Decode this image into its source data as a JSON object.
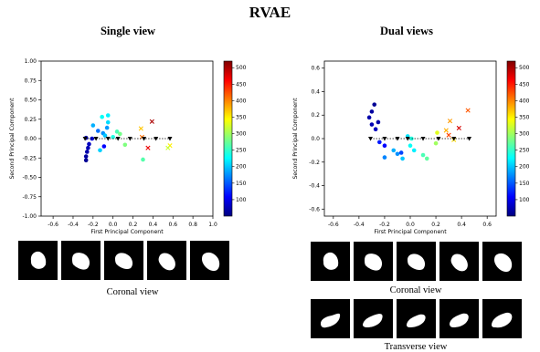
{
  "title": "RVAE",
  "colormap": [
    "#00007f",
    "#0000ff",
    "#007fff",
    "#00ffff",
    "#7fff7f",
    "#ffff00",
    "#ff7f00",
    "#ff0000",
    "#7f0000"
  ],
  "panels": [
    {
      "title": "Single view",
      "view_captions": [
        "Coronal view"
      ],
      "thumbnail_rows": 1,
      "thumbnails_per_row": 5
    },
    {
      "title": "Dual views",
      "view_captions": [
        "Coronal view",
        "Transverse view"
      ],
      "thumbnail_rows": 2,
      "thumbnails_per_row": 5
    }
  ],
  "chart_data": [
    {
      "type": "scatter",
      "title": "Single view",
      "xlabel": "First Principal Component",
      "ylabel": "Second Principal Component",
      "xlim": [
        -0.72,
        1.0
      ],
      "ylim": [
        -1.0,
        1.0
      ],
      "xticks": [
        "-0.6",
        "-0.4",
        "-0.2",
        "0.0",
        "0.2",
        "0.4",
        "0.6",
        "0.8",
        "1.0"
      ],
      "xtick_values": [
        -0.6,
        -0.4,
        -0.2,
        0.0,
        0.2,
        0.4,
        0.6,
        0.8,
        1.0
      ],
      "yticks": [
        "-1.00",
        "-0.75",
        "-0.50",
        "-0.25",
        "0.00",
        "0.25",
        "0.50",
        "0.75",
        "1.00"
      ],
      "ytick_values": [
        -1.0,
        -0.75,
        -0.5,
        -0.25,
        0.0,
        0.25,
        0.5,
        0.75,
        1.0
      ],
      "colorbar": {
        "range": [
          50,
          520
        ],
        "ticks": [
          100,
          150,
          200,
          250,
          300,
          350,
          400,
          450,
          500
        ]
      },
      "points": [
        {
          "x": -0.27,
          "y": -0.28,
          "c": 60
        },
        {
          "x": -0.27,
          "y": -0.23,
          "c": 65
        },
        {
          "x": -0.26,
          "y": -0.17,
          "c": 70
        },
        {
          "x": -0.25,
          "y": -0.12,
          "c": 75
        },
        {
          "x": -0.24,
          "y": -0.07,
          "c": 80
        },
        {
          "x": -0.27,
          "y": 0.01,
          "c": 70
        },
        {
          "x": -0.21,
          "y": 0.0,
          "c": 90
        },
        {
          "x": -0.09,
          "y": -0.1,
          "c": 110
        },
        {
          "x": -0.15,
          "y": 0.1,
          "c": 160
        },
        {
          "x": -0.2,
          "y": 0.17,
          "c": 190
        },
        {
          "x": -0.13,
          "y": -0.15,
          "c": 205
        },
        {
          "x": -0.06,
          "y": 0.14,
          "c": 180
        },
        {
          "x": -0.1,
          "y": 0.07,
          "c": 175
        },
        {
          "x": -0.08,
          "y": 0.04,
          "c": 200
        },
        {
          "x": -0.11,
          "y": 0.28,
          "c": 230
        },
        {
          "x": -0.05,
          "y": 0.3,
          "c": 220
        },
        {
          "x": -0.05,
          "y": 0.21,
          "c": 210
        },
        {
          "x": 0.04,
          "y": 0.09,
          "c": 260
        },
        {
          "x": 0.12,
          "y": -0.08,
          "c": 285
        },
        {
          "x": 0.3,
          "y": -0.27,
          "c": 265
        },
        {
          "x": 0.07,
          "y": 0.06,
          "c": 280
        },
        {
          "x": 0.0,
          "y": 0.02,
          "c": 240
        },
        {
          "x": 0.28,
          "y": 0.13,
          "c": 370,
          "m": "x"
        },
        {
          "x": 0.29,
          "y": 0.02,
          "c": 410,
          "m": "x"
        },
        {
          "x": 0.35,
          "y": -0.12,
          "c": 470,
          "m": "x"
        },
        {
          "x": 0.39,
          "y": 0.22,
          "c": 500,
          "m": "x"
        },
        {
          "x": 0.57,
          "y": -0.09,
          "c": 350,
          "m": "x"
        },
        {
          "x": 0.55,
          "y": -0.12,
          "c": 320,
          "m": "x"
        }
      ],
      "path": [
        {
          "x": -0.28,
          "y": 0.0
        },
        {
          "x": -0.17,
          "y": 0.0
        },
        {
          "x": -0.05,
          "y": 0.0
        },
        {
          "x": 0.05,
          "y": 0.0
        },
        {
          "x": 0.17,
          "y": 0.0
        },
        {
          "x": 0.31,
          "y": 0.0
        },
        {
          "x": 0.43,
          "y": 0.0
        },
        {
          "x": 0.57,
          "y": 0.0
        }
      ]
    },
    {
      "type": "scatter",
      "title": "Dual views",
      "xlabel": "First Principal Component",
      "ylabel": "Second Principal Component",
      "xlim": [
        -0.67,
        0.67
      ],
      "ylim": [
        -0.66,
        0.66
      ],
      "xticks": [
        "-0.6",
        "-0.4",
        "-0.2",
        "0.0",
        "0.2",
        "0.4",
        "0.6"
      ],
      "xtick_values": [
        -0.6,
        -0.4,
        -0.2,
        0.0,
        0.2,
        0.4,
        0.6
      ],
      "yticks": [
        "-0.6",
        "-0.4",
        "-0.2",
        "0.0",
        "0.2",
        "0.4",
        "0.6"
      ],
      "ytick_values": [
        -0.6,
        -0.4,
        -0.2,
        0.0,
        0.2,
        0.4,
        0.6
      ],
      "colorbar": {
        "range": [
          50,
          520
        ],
        "ticks": [
          100,
          150,
          200,
          250,
          300,
          350,
          400,
          450,
          500
        ]
      },
      "points": [
        {
          "x": -0.28,
          "y": 0.29,
          "c": 60
        },
        {
          "x": -0.3,
          "y": 0.23,
          "c": 65
        },
        {
          "x": -0.32,
          "y": 0.18,
          "c": 70
        },
        {
          "x": -0.3,
          "y": 0.12,
          "c": 75
        },
        {
          "x": -0.27,
          "y": 0.08,
          "c": 80
        },
        {
          "x": -0.25,
          "y": 0.14,
          "c": 70
        },
        {
          "x": -0.24,
          "y": -0.03,
          "c": 120
        },
        {
          "x": -0.2,
          "y": -0.16,
          "c": 170
        },
        {
          "x": -0.13,
          "y": -0.1,
          "c": 190
        },
        {
          "x": -0.1,
          "y": -0.13,
          "c": 175
        },
        {
          "x": -0.07,
          "y": -0.12,
          "c": 140
        },
        {
          "x": -0.06,
          "y": -0.17,
          "c": 200
        },
        {
          "x": -0.02,
          "y": 0.02,
          "c": 215
        },
        {
          "x": 0.0,
          "y": -0.06,
          "c": 230
        },
        {
          "x": 0.01,
          "y": 0.0,
          "c": 240
        },
        {
          "x": 0.03,
          "y": -0.1,
          "c": 220
        },
        {
          "x": 0.1,
          "y": -0.14,
          "c": 260
        },
        {
          "x": 0.13,
          "y": -0.17,
          "c": 270
        },
        {
          "x": -0.2,
          "y": -0.06,
          "c": 110
        },
        {
          "x": 0.2,
          "y": -0.04,
          "c": 300
        },
        {
          "x": 0.21,
          "y": 0.05,
          "c": 330
        },
        {
          "x": 0.28,
          "y": 0.07,
          "c": 380,
          "m": "x"
        },
        {
          "x": 0.31,
          "y": 0.15,
          "c": 390,
          "m": "x"
        },
        {
          "x": 0.3,
          "y": 0.03,
          "c": 430,
          "m": "x"
        },
        {
          "x": 0.38,
          "y": 0.09,
          "c": 480,
          "m": "x"
        },
        {
          "x": 0.45,
          "y": 0.24,
          "c": 420,
          "m": "x"
        },
        {
          "x": 0.34,
          "y": -0.01,
          "c": 360,
          "m": "x"
        }
      ],
      "path": [
        {
          "x": -0.31,
          "y": 0.0
        },
        {
          "x": -0.2,
          "y": 0.0
        },
        {
          "x": -0.1,
          "y": 0.0
        },
        {
          "x": -0.02,
          "y": 0.0
        },
        {
          "x": 0.1,
          "y": 0.0
        },
        {
          "x": 0.22,
          "y": 0.0
        },
        {
          "x": 0.34,
          "y": 0.0
        },
        {
          "x": 0.46,
          "y": 0.0
        }
      ]
    }
  ]
}
